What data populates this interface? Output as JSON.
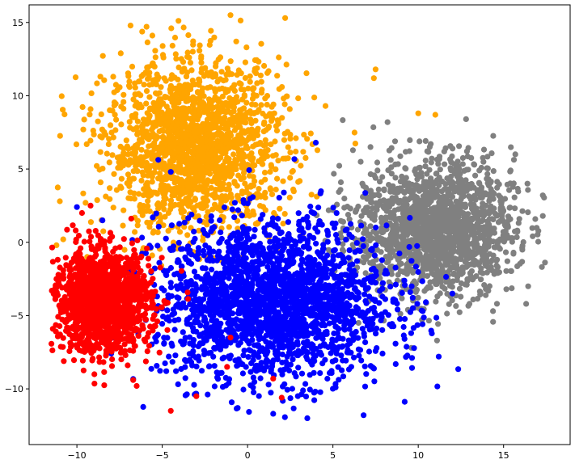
{
  "chart_data": {
    "type": "scatter",
    "title": "",
    "xlabel": "",
    "ylabel": "",
    "xlim": [
      -12.8,
      18.9
    ],
    "ylim": [
      -13.8,
      16.2
    ],
    "xticks": [
      -10,
      -5,
      0,
      5,
      10,
      15
    ],
    "yticks": [
      -10,
      -5,
      0,
      5,
      10,
      15
    ],
    "xtick_labels": [
      "−10",
      "−5",
      "0",
      "5",
      "10",
      "15"
    ],
    "ytick_labels": [
      "−10",
      "−5",
      "0",
      "5",
      "10",
      "15"
    ],
    "grid": false,
    "legend": false,
    "series": [
      {
        "color": "#ffa500",
        "cluster": {
          "center": [
            -3.0,
            6.5
          ],
          "spread": [
            2.6,
            2.9
          ],
          "count": 1800,
          "xrange": [
            -11.2,
            8.4
          ],
          "yrange": [
            -2.2,
            15.5
          ]
        },
        "outliers": [
          [
            -1.0,
            15.5
          ],
          [
            2.2,
            15.3
          ],
          [
            7.5,
            11.8
          ],
          [
            7.4,
            11.2
          ],
          [
            10.0,
            8.8
          ],
          [
            11.0,
            8.7
          ],
          [
            -11.0,
            2.8
          ],
          [
            -10.8,
            0.2
          ],
          [
            -11.2,
            -0.2
          ],
          [
            -9.4,
            -1.0
          ]
        ]
      },
      {
        "color": "#808080",
        "cluster": {
          "center": [
            11.0,
            1.0
          ],
          "spread": [
            2.3,
            2.3
          ],
          "count": 1700,
          "xrange": [
            1.5,
            17.5
          ],
          "yrange": [
            -5.8,
            8.7
          ]
        },
        "outliers": [
          [
            17.3,
            3.2
          ],
          [
            16.4,
            4.0
          ],
          [
            12.8,
            8.4
          ],
          [
            8.2,
            8.2
          ],
          [
            7.2,
            6.5
          ],
          [
            13.0,
            -4.2
          ],
          [
            6.5,
            -5.5
          ],
          [
            11.1,
            -6.7
          ],
          [
            9.6,
            -7.2
          ]
        ]
      },
      {
        "color": "#0000ff",
        "cluster": {
          "center": [
            1.5,
            -4.0
          ],
          "spread": [
            3.4,
            2.7
          ],
          "count": 2200,
          "xrange": [
            -8.5,
            12.5
          ],
          "yrange": [
            -12.0,
            6.8
          ]
        },
        "outliers": [
          [
            3.5,
            -12.0
          ],
          [
            6.8,
            -11.8
          ],
          [
            1.5,
            -11.7
          ],
          [
            11.2,
            -7.8
          ],
          [
            12.0,
            -3.5
          ],
          [
            4.0,
            6.8
          ],
          [
            -4.5,
            4.8
          ],
          [
            -10.0,
            2.4
          ],
          [
            -8.5,
            1.5
          ]
        ]
      },
      {
        "color": "#ff0000",
        "cluster": {
          "center": [
            -8.5,
            -4.0
          ],
          "spread": [
            1.4,
            1.7
          ],
          "count": 1500,
          "xrange": [
            -11.5,
            -2.0
          ],
          "yrange": [
            -11.5,
            2.5
          ]
        },
        "outliers": [
          [
            -4.5,
            -11.5
          ],
          [
            -6.5,
            -9.8
          ],
          [
            -6.7,
            -9.4
          ],
          [
            -3.0,
            -10.5
          ],
          [
            -1.2,
            -8.5
          ],
          [
            -1.0,
            -6.5
          ],
          [
            1.5,
            -9.3
          ],
          [
            2.0,
            -10.6
          ],
          [
            -11.2,
            -2.5
          ],
          [
            -9.7,
            2.0
          ],
          [
            -9.2,
            2.5
          ]
        ]
      }
    ]
  }
}
